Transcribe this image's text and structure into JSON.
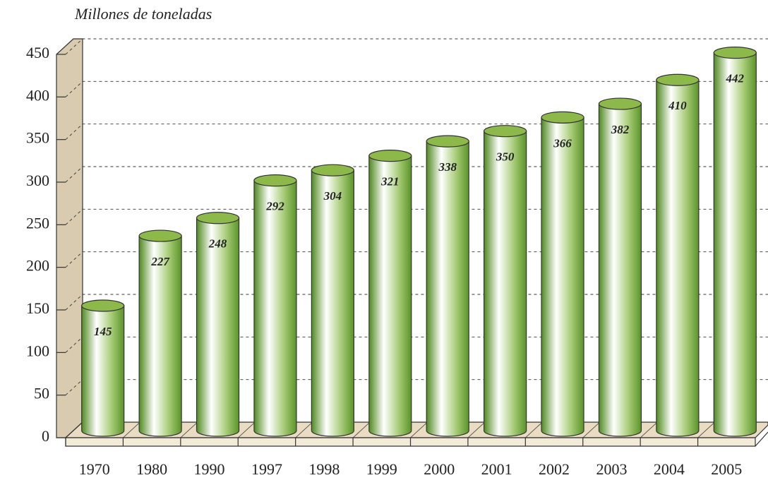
{
  "chart_data": {
    "type": "bar",
    "title": "Millones de toneladas",
    "categories": [
      "1970",
      "1980",
      "1990",
      "1997",
      "1998",
      "1999",
      "2000",
      "2001",
      "2002",
      "2003",
      "2004",
      "2005"
    ],
    "values": [
      145,
      227,
      248,
      292,
      304,
      321,
      338,
      350,
      366,
      382,
      410,
      442
    ],
    "color": "#8db84a",
    "ylim": [
      0,
      450
    ],
    "yticks": [
      0,
      50,
      100,
      150,
      200,
      250,
      300,
      350,
      400,
      450
    ],
    "grid": true
  }
}
